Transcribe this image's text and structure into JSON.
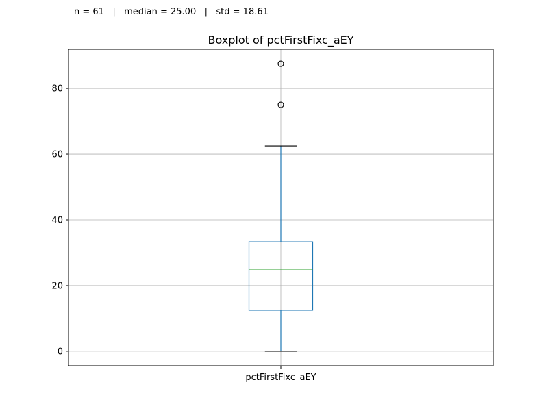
{
  "stats": {
    "text": "n = 61   |   median = 25.00   |   std = 18.61"
  },
  "chart_data": {
    "type": "box",
    "title": "Boxplot of pctFirstFixc_aEY",
    "xlabel": "",
    "ylabel": "",
    "categories": [
      "pctFirstFixc_aEY"
    ],
    "boxes": [
      {
        "label": "pctFirstFixc_aEY",
        "whisker_low": 0,
        "q1": 12.5,
        "median": 25.0,
        "q3": 33.3,
        "whisker_high": 62.5,
        "outliers": [
          75.0,
          87.5
        ]
      }
    ],
    "ylim": [
      -4.4,
      91.9
    ],
    "yticks": [
      0,
      20,
      40,
      60,
      80
    ],
    "grid": true,
    "colors": {
      "box": "#1f77b4",
      "median": "#2ca02c",
      "whisker": "#1f77b4",
      "cap": "#000000",
      "outlier": "#000000",
      "grid": "#b0b0b0"
    }
  }
}
